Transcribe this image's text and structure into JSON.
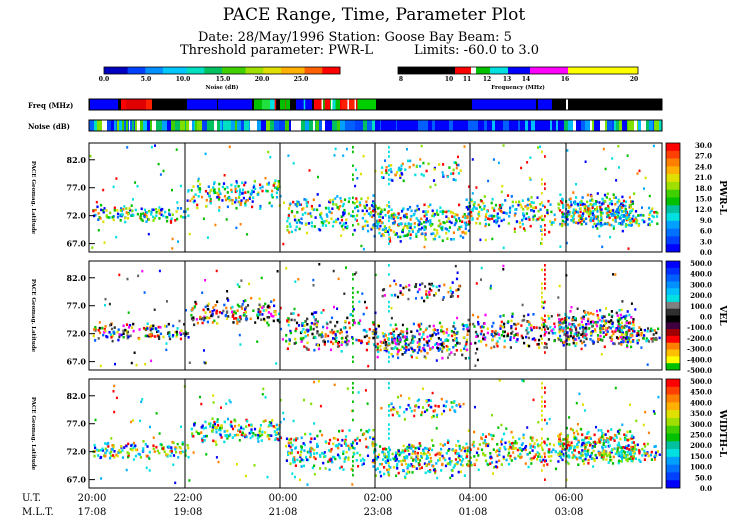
{
  "header": {
    "title": "PACE Range, Time, Parameter Plot",
    "date_line": "Date: 28/May/1996  Station: Goose Bay  Beam: 5",
    "threshold_label": "Threshold parameter: PWR-L",
    "limits_label": "Limits: -60.0 to  3.0"
  },
  "noise_scale": {
    "label": "Noise (dB)",
    "ticks": [
      "0.0",
      "5.0",
      "10.0",
      "15.0",
      "20.0",
      "25.0"
    ],
    "colors": [
      "#0000ff",
      "#0070ff",
      "#00e0e0",
      "#00c000",
      "#80e000",
      "#e0e000",
      "#ff8000",
      "#ff0000"
    ]
  },
  "freq_scale": {
    "label": "Frequency (MHz)",
    "ticks": [
      "8",
      "10",
      "11",
      "12",
      "13",
      "14",
      "16",
      "20"
    ],
    "colors": [
      "#000000",
      "#ff0000",
      "#ffffff",
      "#00c000",
      "#00e0e0",
      "#0000ff",
      "#ff00ff",
      "#ffff00"
    ]
  },
  "strips": {
    "freq_label": "Freq (MHz)",
    "noise_label": "Noise (dB)"
  },
  "panels": [
    {
      "ylabel": "PACE Geomag. Latitude",
      "param": "PWR-L",
      "scale": [
        "30.0",
        "27.0",
        "24.0",
        "21.0",
        "18.0",
        "15.0",
        "12.0",
        "9.0",
        "6.0",
        "3.0",
        "0.0"
      ]
    },
    {
      "ylabel": "PACE Geomag. Latitude",
      "param": "VEL",
      "scale": [
        "500.0",
        "400.0",
        "300.0",
        "200.0",
        "100.0",
        "0.0",
        "-100.0",
        "-200.0",
        "-300.0",
        "-400.0",
        "-500.0"
      ]
    },
    {
      "ylabel": "PACE Geomag. Latitude",
      "param": "WIDTH-L",
      "scale": [
        "500.0",
        "450.0",
        "400.0",
        "350.0",
        "300.0",
        "250.0",
        "200.0",
        "150.0",
        "100.0",
        "50.0",
        "0.0"
      ]
    }
  ],
  "y_ticks": [
    "82.0",
    "77.0",
    "72.0",
    "67.0"
  ],
  "x_axis": {
    "ut_label": "U.T.",
    "mlt_label": "M.L.T.",
    "ut": [
      "20:00",
      "22:00",
      "00:00",
      "02:00",
      "04:00",
      "06:00"
    ],
    "mlt": [
      "17:08",
      "19:08",
      "21:08",
      "23:08",
      "01:08",
      "03:08"
    ]
  },
  "chart_data": {
    "type": "heatmap",
    "title": "PACE Range, Time, Parameter Plot",
    "x": [
      "20:00",
      "22:00",
      "00:00",
      "02:00",
      "04:00",
      "06:00"
    ],
    "ylabel": "PACE Geomag. Latitude",
    "ylim": [
      65.5,
      85.0
    ],
    "y_ticks": [
      82.0,
      77.0,
      72.0,
      67.0
    ],
    "series": [
      {
        "name": "PWR-L",
        "range": [
          0.0,
          30.0
        ]
      },
      {
        "name": "VEL",
        "range": [
          -500.0,
          500.0
        ]
      },
      {
        "name": "WIDTH-L",
        "range": [
          0.0,
          500.0
        ]
      }
    ],
    "threshold": {
      "parameter": "PWR-L",
      "limits": [
        -60.0,
        3.0
      ]
    }
  }
}
